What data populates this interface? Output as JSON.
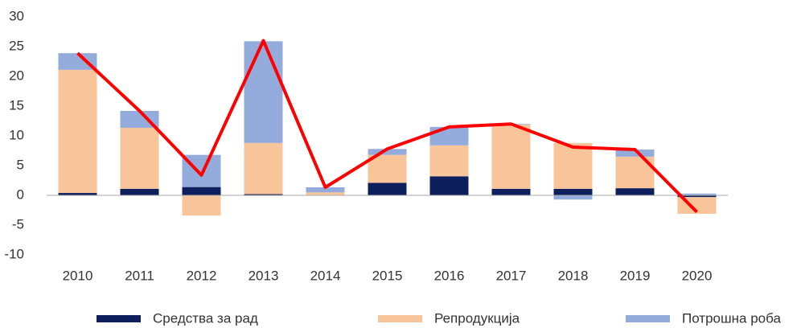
{
  "chart_data": {
    "type": "bar",
    "stacked": true,
    "categories": [
      "2010",
      "2011",
      "2012",
      "2013",
      "2014",
      "2015",
      "2016",
      "2017",
      "2018",
      "2019",
      "2020"
    ],
    "series": [
      {
        "name": "Средства за рад",
        "color": "#0d1f5c",
        "values": [
          0.4,
          1.1,
          1.4,
          0.2,
          0,
          2.1,
          3.2,
          1.1,
          1.1,
          1.2,
          -0.3
        ]
      },
      {
        "name": "Репродукција",
        "color": "#f8c59b",
        "values": [
          20.7,
          10.25,
          -3.4,
          8.6,
          0.5,
          4.7,
          5.2,
          10.8,
          7.7,
          5.3,
          -2.8
        ]
      },
      {
        "name": "Потрошна роба",
        "color": "#94acdc",
        "values": [
          2.8,
          2.85,
          5.4,
          17.1,
          0.85,
          1.0,
          3.1,
          0.1,
          -0.7,
          1.2,
          0.3
        ]
      },
      {
        "type": "line",
        "color": "#ff0000",
        "values": [
          23.9,
          14.2,
          3.4,
          26,
          1.35,
          7.8,
          11.5,
          12.0,
          8.1,
          7.7,
          -2.8
        ]
      }
    ],
    "ylim": [
      -10,
      30
    ],
    "yticks": [
      -10,
      -5,
      0,
      5,
      10,
      15,
      20,
      25,
      30
    ],
    "grid": false,
    "legend": "bottom"
  }
}
